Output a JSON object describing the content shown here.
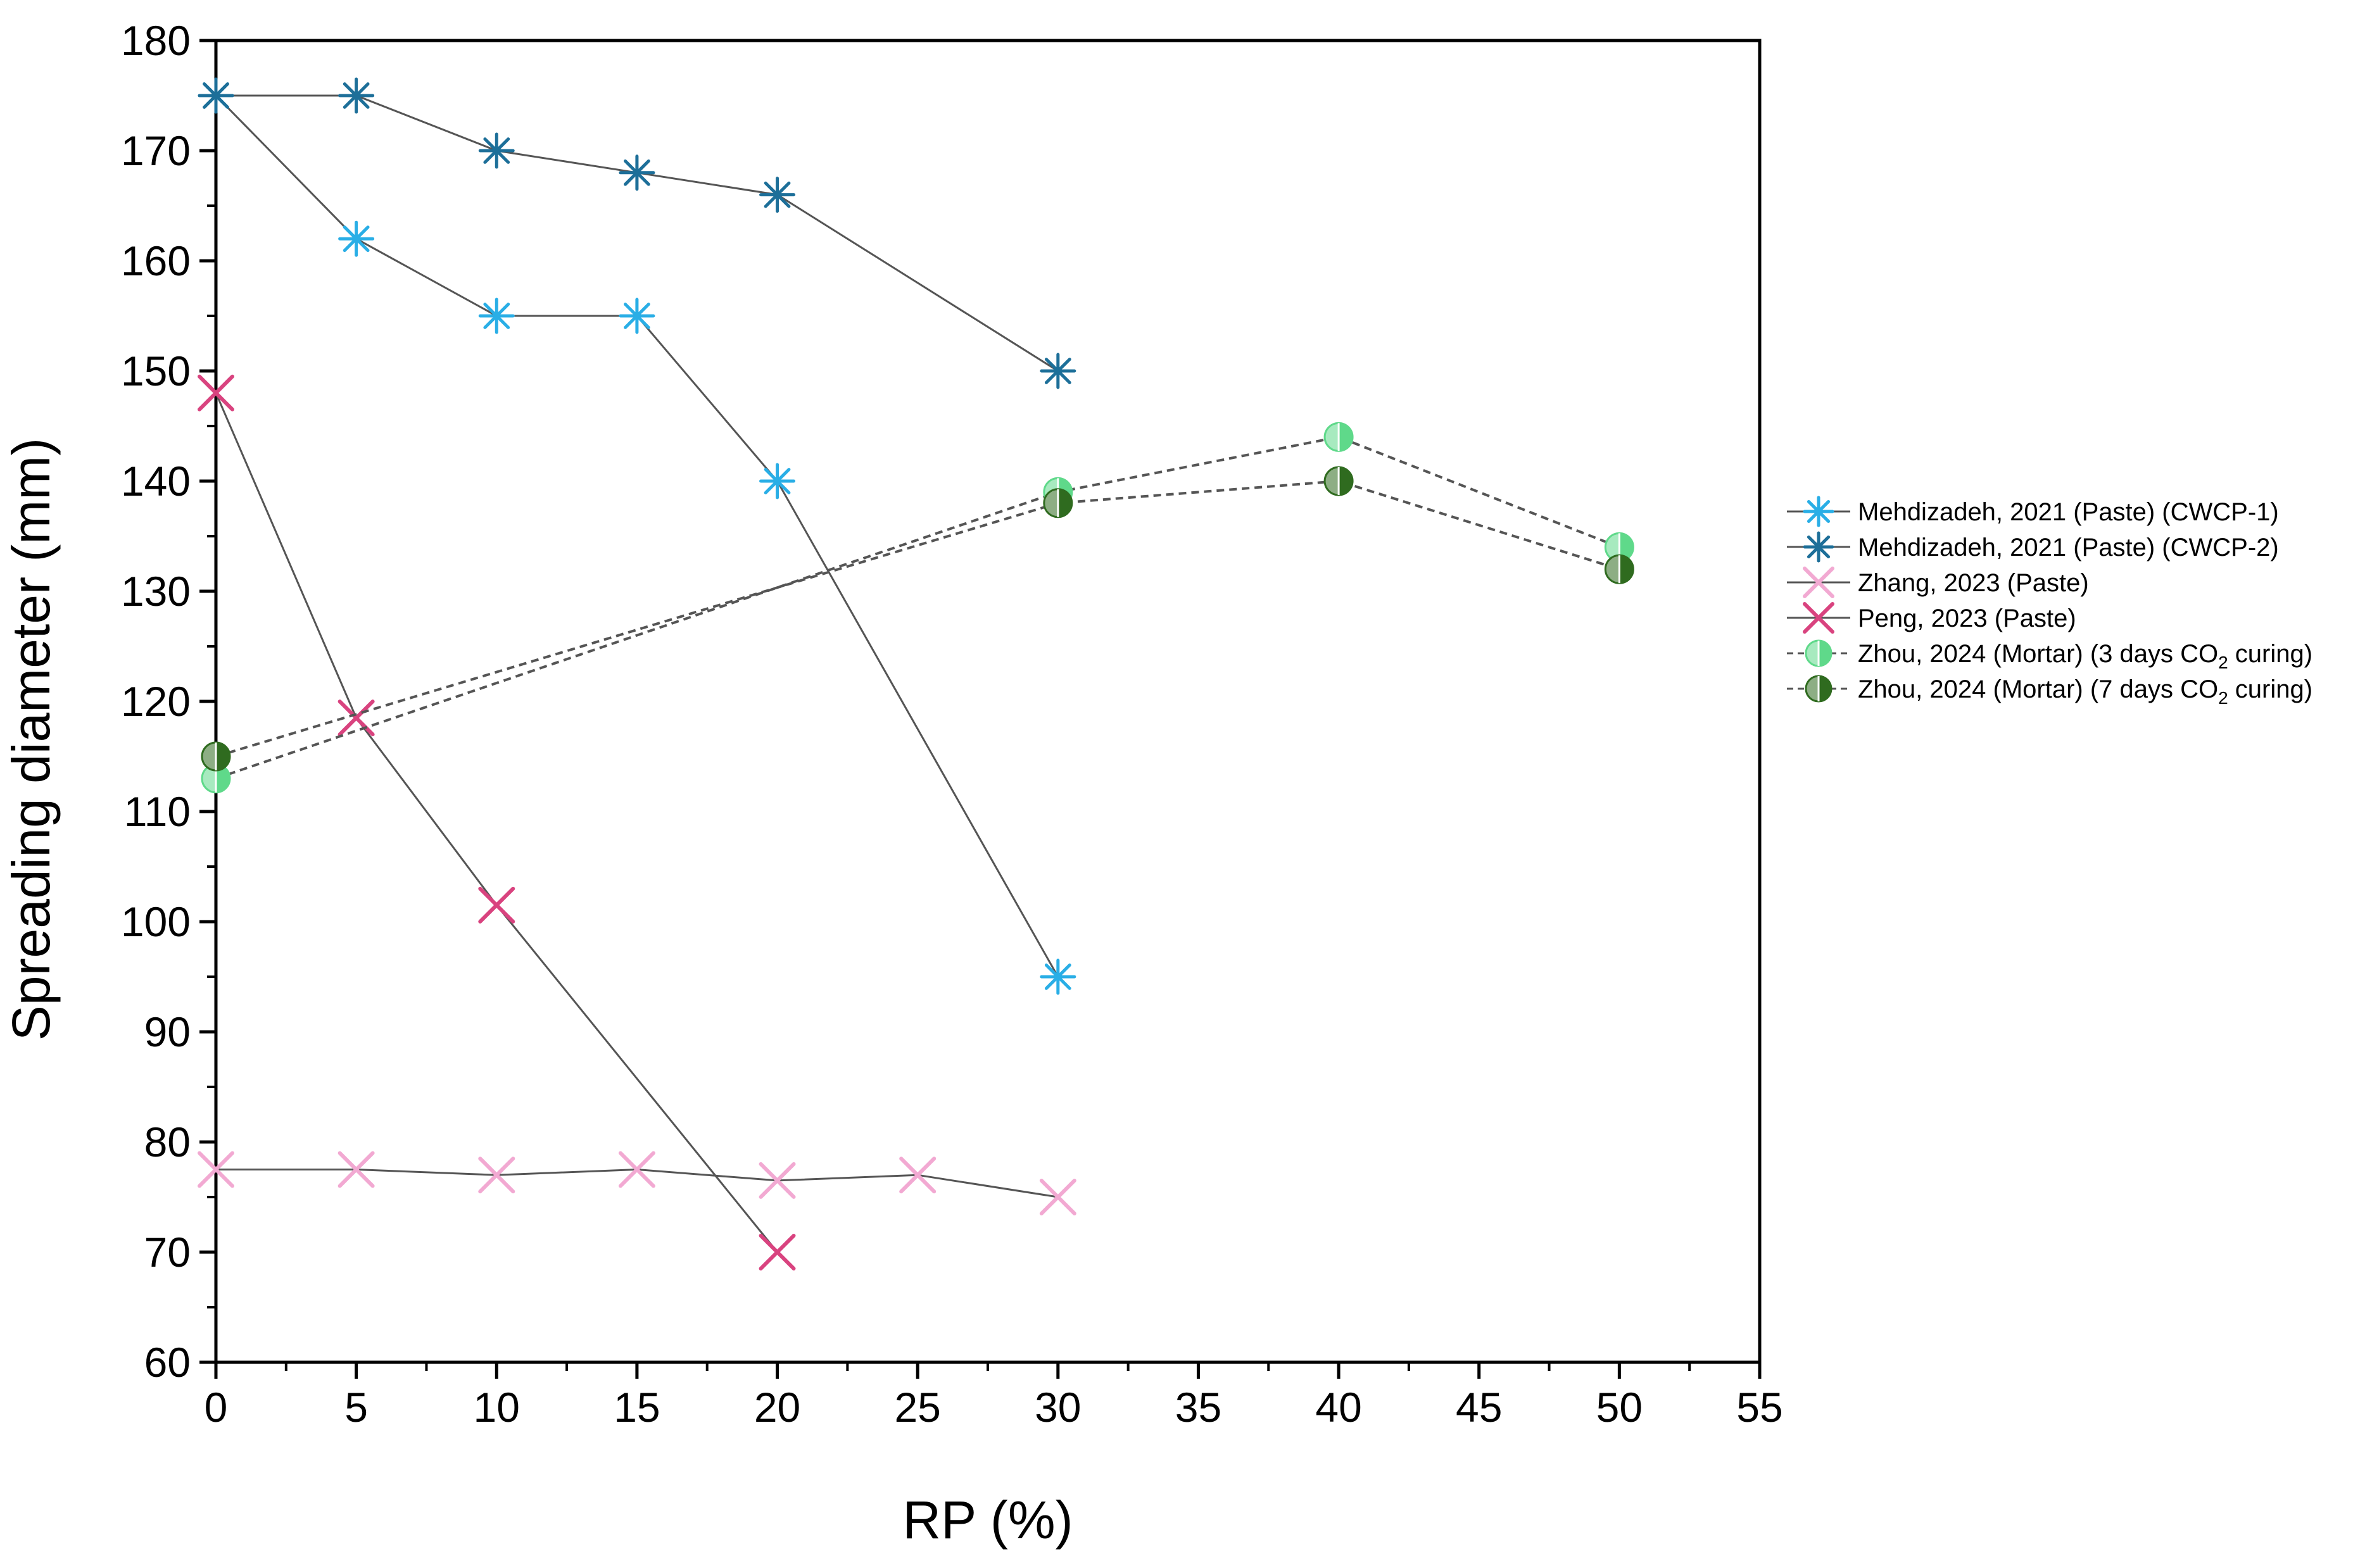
{
  "chart_data": {
    "type": "line",
    "title": "",
    "xlabel": "RP (%)",
    "ylabel": "Spreading diameter (mm)",
    "xlim": [
      0,
      55
    ],
    "ylim": [
      60,
      180
    ],
    "xticks": [
      0,
      5,
      10,
      15,
      20,
      25,
      30,
      35,
      40,
      45,
      50,
      55
    ],
    "yticks": [
      60,
      70,
      80,
      90,
      100,
      110,
      120,
      130,
      140,
      150,
      160,
      170,
      180
    ],
    "legend_position": "right",
    "series": [
      {
        "name": "Mehdizadeh, 2021 (Paste) (CWCP-1)",
        "marker": "asterisk",
        "color": "#29aee6",
        "line": "solid",
        "x": [
          0,
          5,
          10,
          15,
          20,
          30
        ],
        "y": [
          175,
          162,
          155,
          155,
          140,
          95
        ]
      },
      {
        "name": "Mehdizadeh, 2021 (Paste) (CWCP-2)",
        "marker": "asterisk",
        "color": "#1d6f99",
        "line": "solid",
        "x": [
          0,
          5,
          10,
          15,
          20,
          30
        ],
        "y": [
          175,
          175,
          170,
          168,
          166,
          150
        ]
      },
      {
        "name": "Zhang, 2023 (Paste)",
        "marker": "cross",
        "color": "#f2a9d2",
        "line": "solid",
        "x": [
          0,
          5,
          10,
          15,
          20,
          25,
          30
        ],
        "y": [
          77.5,
          77.5,
          77,
          77.5,
          76.5,
          77,
          75
        ]
      },
      {
        "name": "Peng, 2023 (Paste)",
        "marker": "cross",
        "color": "#d9437f",
        "line": "solid",
        "x": [
          0,
          5,
          10,
          20
        ],
        "y": [
          148,
          118.5,
          101.5,
          70
        ]
      },
      {
        "name": "Zhou, 2024 (Mortar) (3 days CO",
        "name_sub": "2",
        "name_tail": " curing)",
        "marker": "half-circle",
        "color": "#5fd98a",
        "line": "dashed",
        "x": [
          0,
          30,
          40,
          50
        ],
        "y": [
          113,
          139,
          144,
          134
        ]
      },
      {
        "name": "Zhou, 2024 (Mortar) (7 days CO",
        "name_sub": "2",
        "name_tail": " curing)",
        "marker": "half-circle",
        "color": "#2f6b1f",
        "line": "dashed",
        "x": [
          0,
          30,
          40,
          50
        ],
        "y": [
          115,
          138,
          140,
          132
        ]
      }
    ]
  }
}
